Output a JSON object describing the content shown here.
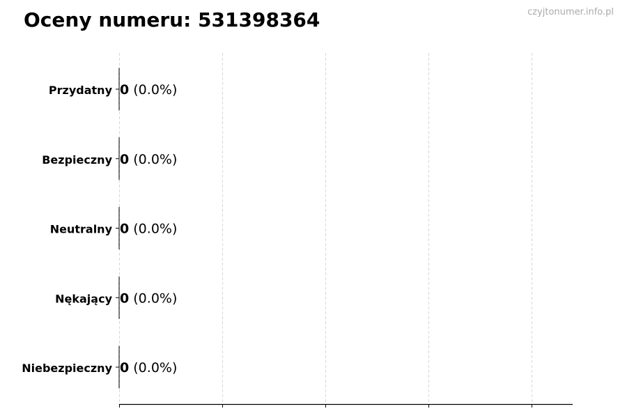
{
  "chart_data": {
    "type": "bar",
    "orientation": "horizontal",
    "title": "Oceny numeru: 531398364",
    "categories": [
      "Przydatny",
      "Bezpieczny",
      "Neutralny",
      "Nękający",
      "Niebezpieczny"
    ],
    "values": [
      0,
      0,
      0,
      0,
      0
    ],
    "percent_labels": [
      "(0.0%)",
      "(0.0%)",
      "(0.0%)",
      "(0.0%)",
      "(0.0%)"
    ],
    "xlabel": "",
    "ylabel": "",
    "x_ticks_count": 5,
    "x_tick_labels": [],
    "grid": "vertical dashed",
    "colors": {
      "bar_edge": "#000000",
      "grid": "#cccccc"
    }
  },
  "watermark": "czyjtonumer.info.pl"
}
